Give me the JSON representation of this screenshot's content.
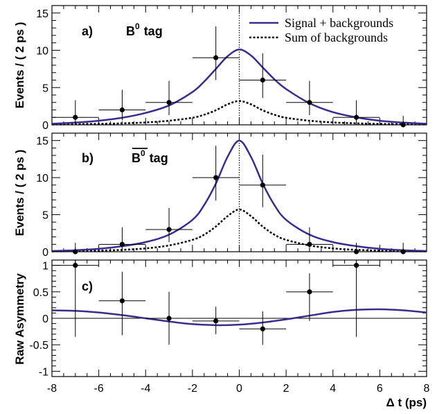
{
  "chart_data": [
    {
      "panel": "a",
      "type": "line",
      "ylabel": "Events / ( 2 ps )",
      "label": "a)",
      "tag": {
        "particle": "B",
        "superscript": "0",
        "bar": false,
        "word": "tag"
      },
      "xlim": [
        -8,
        8
      ],
      "ylim": [
        0,
        16
      ],
      "yticks": [
        0,
        5,
        10,
        15
      ],
      "points": {
        "x": [
          -7,
          -5,
          -3,
          -1,
          1,
          3,
          5,
          7
        ],
        "y": [
          1,
          2,
          3,
          9,
          6,
          3,
          1,
          0
        ],
        "yerr_low": [
          1,
          1.4,
          1.7,
          3,
          2.4,
          1.7,
          1,
          0
        ],
        "yerr_high": [
          2.3,
          2.7,
          2.9,
          4.2,
          3.6,
          2.9,
          2.3,
          1.2
        ],
        "xerr": 1
      },
      "legend": {
        "placement": "top-right",
        "entries": [
          {
            "label": "Signal + backgrounds",
            "style": "solid",
            "color": "#3d2a8e"
          },
          {
            "label": "Sum of backgrounds",
            "style": "dotted",
            "color": "#000000"
          }
        ]
      },
      "curves": {
        "signal_plus_backgrounds": {
          "x": [
            -8,
            -7,
            -6,
            -5,
            -4,
            -3,
            -2,
            -1.5,
            -1,
            -0.5,
            0,
            0.5,
            1,
            1.5,
            2,
            3,
            4,
            5,
            6,
            7,
            8
          ],
          "y": [
            0.15,
            0.3,
            0.55,
            0.95,
            1.6,
            2.6,
            4.4,
            5.8,
            7.5,
            9.2,
            10.1,
            9.3,
            7.7,
            6.1,
            4.8,
            2.9,
            1.7,
            1.0,
            0.55,
            0.3,
            0.15
          ]
        },
        "sum_of_backgrounds": {
          "x": [
            -8,
            -7,
            -6,
            -5,
            -4,
            -3,
            -2,
            -1.5,
            -1,
            -0.5,
            0,
            0.5,
            1,
            1.5,
            2,
            3,
            4,
            5,
            6,
            7,
            8
          ],
          "y": [
            0.05,
            0.08,
            0.13,
            0.2,
            0.32,
            0.55,
            0.95,
            1.35,
            1.95,
            2.75,
            3.2,
            2.75,
            1.95,
            1.35,
            0.95,
            0.55,
            0.32,
            0.2,
            0.13,
            0.08,
            0.05
          ]
        }
      }
    },
    {
      "panel": "b",
      "type": "line",
      "ylabel": "Events / ( 2 ps )",
      "label": "b)",
      "tag": {
        "particle": "B",
        "superscript": "0",
        "bar": true,
        "word": "tag"
      },
      "xlim": [
        -8,
        8
      ],
      "ylim": [
        0,
        16
      ],
      "yticks": [
        0,
        5,
        10,
        15
      ],
      "points": {
        "x": [
          -7,
          -5,
          -3,
          -1,
          1,
          3,
          5,
          7
        ],
        "y": [
          0,
          1,
          3,
          10,
          9,
          1,
          0,
          0
        ],
        "yerr_low": [
          0,
          1,
          1.7,
          3.1,
          3,
          1,
          0,
          0
        ],
        "yerr_high": [
          1.2,
          2.3,
          2.9,
          4.3,
          4.1,
          2.3,
          1.2,
          1.2
        ],
        "xerr": 1
      },
      "curves": {
        "signal_plus_backgrounds": {
          "x": [
            -8,
            -7,
            -6,
            -5,
            -4,
            -3,
            -2,
            -1.5,
            -1,
            -0.5,
            0,
            0.5,
            1,
            1.5,
            2,
            3,
            4,
            5,
            6,
            7,
            8
          ],
          "y": [
            0.1,
            0.2,
            0.4,
            0.75,
            1.3,
            2.3,
            4.3,
            6.3,
            9.2,
            12.8,
            15.0,
            12.8,
            9.2,
            6.3,
            4.3,
            2.3,
            1.3,
            0.75,
            0.4,
            0.2,
            0.1
          ]
        },
        "sum_of_backgrounds": {
          "x": [
            -8,
            -7,
            -6,
            -5,
            -4,
            -3,
            -2,
            -1.5,
            -1,
            -0.5,
            0,
            0.5,
            1,
            1.5,
            2,
            3,
            4,
            5,
            6,
            7,
            8
          ],
          "y": [
            0.05,
            0.08,
            0.15,
            0.25,
            0.45,
            0.85,
            1.6,
            2.3,
            3.4,
            4.8,
            5.7,
            4.8,
            3.4,
            2.3,
            1.6,
            0.85,
            0.45,
            0.25,
            0.15,
            0.08,
            0.05
          ]
        }
      }
    },
    {
      "panel": "c",
      "type": "line",
      "ylabel": "Raw Asymmetry",
      "xlabel": "Δ t (ps)",
      "label": "c)",
      "xlim": [
        -8,
        8
      ],
      "ylim": [
        -1.1,
        1.1
      ],
      "yticks": [
        -1,
        -0.5,
        0,
        0.5,
        1
      ],
      "ytick_labels": [
        "-1",
        "-0.5",
        "0",
        "0.5",
        "1"
      ],
      "xticks": [
        -8,
        -6,
        -4,
        -2,
        0,
        2,
        4,
        6,
        8
      ],
      "points": {
        "x": [
          -7,
          -5,
          -3,
          -1,
          1,
          3,
          5
        ],
        "y": [
          1.0,
          0.33,
          0.0,
          -0.05,
          -0.2,
          0.5,
          1.0
        ],
        "yerr_low": [
          1.35,
          0.65,
          0.5,
          0.25,
          0.3,
          0.55,
          1.35
        ],
        "yerr_high": [
          0.1,
          0.55,
          0.5,
          0.27,
          0.33,
          0.35,
          0.1
        ],
        "xerr": 1
      },
      "curves": {
        "signal_plus_backgrounds": {
          "x": [
            -8,
            -7,
            -6,
            -5,
            -4,
            -3,
            -2,
            -1,
            0,
            1,
            2,
            3,
            4,
            5,
            6,
            7,
            8
          ],
          "y": [
            0.15,
            0.14,
            0.11,
            0.06,
            0.0,
            -0.06,
            -0.11,
            -0.13,
            -0.12,
            -0.08,
            -0.02,
            0.05,
            0.12,
            0.16,
            0.17,
            0.15,
            0.11
          ]
        }
      }
    }
  ]
}
